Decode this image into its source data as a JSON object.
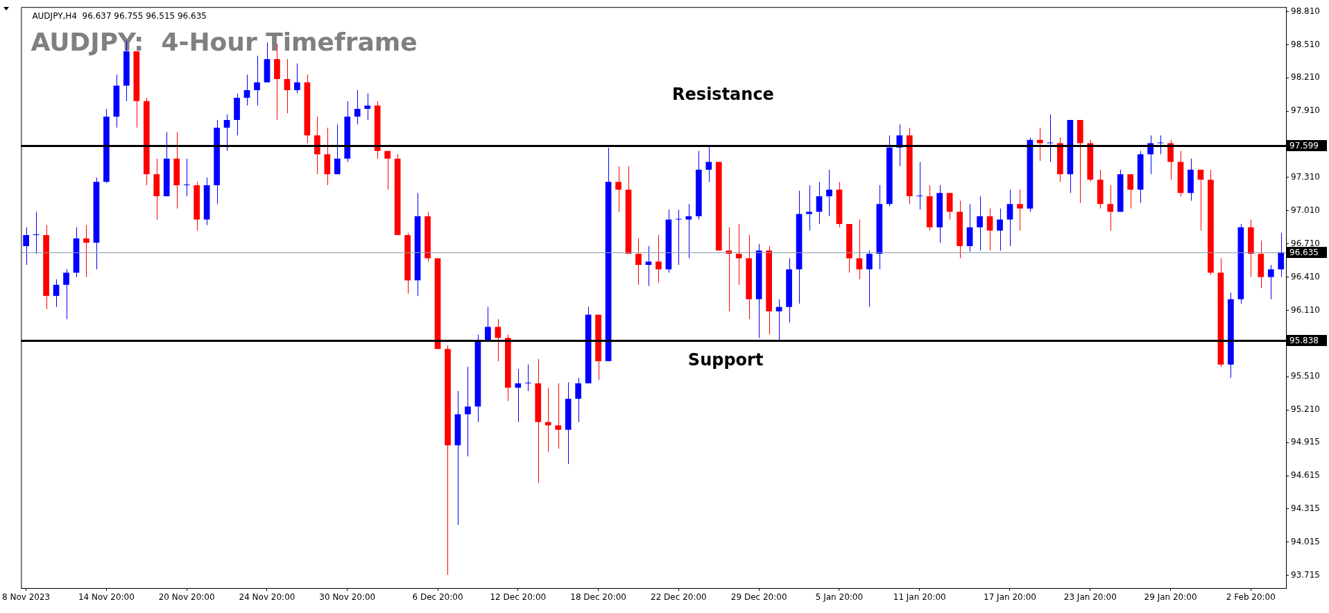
{
  "chart_data": {
    "type": "candlestick",
    "title": "AUDJPY:  4-Hour Timeframe",
    "annotations": [
      "AUDJPY,H4  96.637 96.755 96.515 96.635",
      "Resistance",
      "Support"
    ],
    "categories": [
      "8 Nov 2023",
      null,
      null,
      null,
      null,
      null,
      null,
      null,
      "14 Nov 20:00",
      null,
      null,
      null,
      null,
      null,
      null,
      null,
      "20 Nov 20:00",
      null,
      null,
      null,
      null,
      null,
      null,
      null,
      "24 Nov 20:00",
      null,
      null,
      null,
      null,
      null,
      null,
      null,
      "30 Nov 20:00",
      null,
      null,
      null,
      null,
      null,
      null,
      null,
      null,
      "6 Dec 20:00",
      null,
      null,
      null,
      null,
      null,
      null,
      null,
      "12 Dec 20:00",
      null,
      null,
      null,
      null,
      null,
      null,
      null,
      "18 Dec 20:00",
      null,
      null,
      null,
      null,
      null,
      null,
      null,
      "22 Dec 20:00",
      null,
      null,
      null,
      null,
      null,
      null,
      null,
      "29 Dec 20:00",
      null,
      null,
      null,
      null,
      null,
      null,
      null,
      "5 Jan 20:00",
      null,
      null,
      null,
      null,
      null,
      null,
      null,
      "11 Jan 20:00",
      null,
      null,
      null,
      null,
      null,
      null,
      null,
      null,
      "17 Jan 20:00",
      null,
      null,
      null,
      null,
      null,
      null,
      null,
      "23 Jan 20:00",
      null,
      null,
      null,
      null,
      null,
      null,
      null,
      "29 Jan 20:00",
      null,
      null,
      null,
      null,
      null,
      null,
      null,
      "2 Feb 20:00",
      null,
      null,
      null
    ],
    "ohlc": [
      [
        96.69,
        96.86,
        96.52,
        96.79
      ],
      [
        96.79,
        97.0,
        96.62,
        96.79
      ],
      [
        96.79,
        96.88,
        96.12,
        96.24
      ],
      [
        96.24,
        96.39,
        96.14,
        96.34
      ],
      [
        96.34,
        96.48,
        96.03,
        96.45
      ],
      [
        96.45,
        96.86,
        96.41,
        96.76
      ],
      [
        96.76,
        96.88,
        96.41,
        96.72
      ],
      [
        96.72,
        97.31,
        96.48,
        97.27
      ],
      [
        97.27,
        97.93,
        97.26,
        97.86
      ],
      [
        97.86,
        98.24,
        97.76,
        98.14
      ],
      [
        98.14,
        98.55,
        98.0,
        98.45
      ],
      [
        98.45,
        98.45,
        97.76,
        98.0
      ],
      [
        98.0,
        98.03,
        97.24,
        97.34
      ],
      [
        97.34,
        97.48,
        96.93,
        97.14
      ],
      [
        97.14,
        97.72,
        97.14,
        97.48
      ],
      [
        97.48,
        97.72,
        97.03,
        97.24
      ],
      [
        97.24,
        97.48,
        97.14,
        97.24
      ],
      [
        97.24,
        97.27,
        96.83,
        96.93
      ],
      [
        96.93,
        97.31,
        96.88,
        97.24
      ],
      [
        97.24,
        97.83,
        97.07,
        97.76
      ],
      [
        97.76,
        97.88,
        97.55,
        97.83
      ],
      [
        97.83,
        98.07,
        97.69,
        98.03
      ],
      [
        98.03,
        98.24,
        97.96,
        98.1
      ],
      [
        98.1,
        98.41,
        97.96,
        98.17
      ],
      [
        98.17,
        98.53,
        98.17,
        98.38
      ],
      [
        98.38,
        98.52,
        97.83,
        98.2
      ],
      [
        98.2,
        98.38,
        97.89,
        98.1
      ],
      [
        98.1,
        98.34,
        98.07,
        98.17
      ],
      [
        98.17,
        98.24,
        97.62,
        97.69
      ],
      [
        97.69,
        97.86,
        97.34,
        97.52
      ],
      [
        97.52,
        97.76,
        97.24,
        97.34
      ],
      [
        97.34,
        97.79,
        97.34,
        97.48
      ],
      [
        97.48,
        98.0,
        97.45,
        97.86
      ],
      [
        97.86,
        98.1,
        97.79,
        97.93
      ],
      [
        97.93,
        98.07,
        97.83,
        97.96
      ],
      [
        97.96,
        98.0,
        97.48,
        97.55
      ],
      [
        97.55,
        97.55,
        97.2,
        97.48
      ],
      [
        97.48,
        97.52,
        96.79,
        96.79
      ],
      [
        96.79,
        96.81,
        96.26,
        96.38
      ],
      [
        96.38,
        97.17,
        96.24,
        96.96
      ],
      [
        96.96,
        97.0,
        96.55,
        96.58
      ],
      [
        96.58,
        96.58,
        95.76,
        95.76
      ],
      [
        95.76,
        95.79,
        93.72,
        94.89
      ],
      [
        94.89,
        95.38,
        94.17,
        95.17
      ],
      [
        95.17,
        95.6,
        94.79,
        95.24
      ],
      [
        95.24,
        95.89,
        95.1,
        95.83
      ],
      [
        95.83,
        96.14,
        95.83,
        95.96
      ],
      [
        95.96,
        96.03,
        95.65,
        95.86
      ],
      [
        95.86,
        95.89,
        95.29,
        95.41
      ],
      [
        95.41,
        95.58,
        95.1,
        95.45
      ],
      [
        95.45,
        95.62,
        95.38,
        95.45
      ],
      [
        95.45,
        95.67,
        94.55,
        95.1
      ],
      [
        95.1,
        95.41,
        94.83,
        95.07
      ],
      [
        95.07,
        95.45,
        94.86,
        95.03
      ],
      [
        95.03,
        95.46,
        94.72,
        95.31
      ],
      [
        95.31,
        95.5,
        95.1,
        95.45
      ],
      [
        95.45,
        96.14,
        95.45,
        96.07
      ],
      [
        96.07,
        96.07,
        95.48,
        95.65
      ],
      [
        95.65,
        97.58,
        95.65,
        97.27
      ],
      [
        97.27,
        97.41,
        97.0,
        97.2
      ],
      [
        97.2,
        97.41,
        96.62,
        96.62
      ],
      [
        96.62,
        96.76,
        96.34,
        96.52
      ],
      [
        96.52,
        96.69,
        96.33,
        96.55
      ],
      [
        96.55,
        96.79,
        96.36,
        96.48
      ],
      [
        96.48,
        97.02,
        96.45,
        96.93
      ],
      [
        96.93,
        97.02,
        96.52,
        96.93
      ],
      [
        96.93,
        97.07,
        96.58,
        96.96
      ],
      [
        96.96,
        97.55,
        96.93,
        97.38
      ],
      [
        97.38,
        97.6,
        97.27,
        97.45
      ],
      [
        97.45,
        97.45,
        96.65,
        96.65
      ],
      [
        96.65,
        96.86,
        96.1,
        96.62
      ],
      [
        96.62,
        96.89,
        96.34,
        96.58
      ],
      [
        96.58,
        96.79,
        96.03,
        96.21
      ],
      [
        96.21,
        96.71,
        95.86,
        96.65
      ],
      [
        96.65,
        96.69,
        95.89,
        96.1
      ],
      [
        96.1,
        96.21,
        95.83,
        96.14
      ],
      [
        96.14,
        96.58,
        96.0,
        96.48
      ],
      [
        96.48,
        97.19,
        96.17,
        96.98
      ],
      [
        96.98,
        97.24,
        96.83,
        97.0
      ],
      [
        97.0,
        97.27,
        96.89,
        97.14
      ],
      [
        97.14,
        97.38,
        96.96,
        97.2
      ],
      [
        97.2,
        97.27,
        96.86,
        96.89
      ],
      [
        96.89,
        96.89,
        96.45,
        96.58
      ],
      [
        96.58,
        96.93,
        96.39,
        96.48
      ],
      [
        96.48,
        96.65,
        96.14,
        96.62
      ],
      [
        96.62,
        97.24,
        96.48,
        97.07
      ],
      [
        97.07,
        97.69,
        97.05,
        97.58
      ],
      [
        97.58,
        97.79,
        97.41,
        97.69
      ],
      [
        97.69,
        97.76,
        97.07,
        97.14
      ],
      [
        97.14,
        97.45,
        97.02,
        97.14
      ],
      [
        97.14,
        97.24,
        96.83,
        96.86
      ],
      [
        96.86,
        97.24,
        96.72,
        97.17
      ],
      [
        97.17,
        97.17,
        96.93,
        97.0
      ],
      [
        97.0,
        97.1,
        96.58,
        96.69
      ],
      [
        96.69,
        97.07,
        96.64,
        96.86
      ],
      [
        96.86,
        97.14,
        96.65,
        96.96
      ],
      [
        96.96,
        97.03,
        96.65,
        96.83
      ],
      [
        96.83,
        97.03,
        96.65,
        96.93
      ],
      [
        96.93,
        97.2,
        96.69,
        97.07
      ],
      [
        97.07,
        97.2,
        96.83,
        97.03
      ],
      [
        97.03,
        97.67,
        97.0,
        97.65
      ],
      [
        97.65,
        97.76,
        97.46,
        97.62
      ],
      [
        97.62,
        97.88,
        97.45,
        97.62
      ],
      [
        97.62,
        97.67,
        97.27,
        97.34
      ],
      [
        97.34,
        97.83,
        97.17,
        97.83
      ],
      [
        97.83,
        97.83,
        97.08,
        97.62
      ],
      [
        97.62,
        97.65,
        97.27,
        97.29
      ],
      [
        97.29,
        97.38,
        97.03,
        97.07
      ],
      [
        97.07,
        97.24,
        96.83,
        97.0
      ],
      [
        97.0,
        97.38,
        97.0,
        97.34
      ],
      [
        97.34,
        97.34,
        97.03,
        97.2
      ],
      [
        97.2,
        97.55,
        97.08,
        97.52
      ],
      [
        97.52,
        97.69,
        97.34,
        97.62
      ],
      [
        97.62,
        97.69,
        97.52,
        97.62
      ],
      [
        97.62,
        97.65,
        97.29,
        97.45
      ],
      [
        97.45,
        97.55,
        97.14,
        97.17
      ],
      [
        97.17,
        97.48,
        97.1,
        97.38
      ],
      [
        97.38,
        97.38,
        96.83,
        97.29
      ],
      [
        97.29,
        97.38,
        96.43,
        96.45
      ],
      [
        96.45,
        96.58,
        95.6,
        95.62
      ],
      [
        95.62,
        96.27,
        95.5,
        96.21
      ],
      [
        96.21,
        96.89,
        96.17,
        96.86
      ],
      [
        96.86,
        96.93,
        96.41,
        96.62
      ],
      [
        96.62,
        96.74,
        96.31,
        96.41
      ],
      [
        96.41,
        96.52,
        96.21,
        96.48
      ],
      [
        96.48,
        96.81,
        96.41,
        96.635
      ]
    ],
    "colors": [
      "#0000ff",
      "#0000ff",
      "#ff0000",
      "#0000ff",
      "#0000ff",
      "#0000ff",
      "#ff0000",
      "#0000ff",
      "#0000ff",
      "#0000ff",
      "#0000ff",
      "#ff0000",
      "#ff0000",
      "#ff0000",
      "#0000ff",
      "#ff0000",
      "#0000ff",
      "#ff0000",
      "#0000ff",
      "#0000ff",
      "#0000ff",
      "#0000ff",
      "#0000ff",
      "#0000ff",
      "#0000ff",
      "#ff0000",
      "#ff0000",
      "#0000ff",
      "#ff0000",
      "#ff0000",
      "#ff0000",
      "#0000ff",
      "#0000ff",
      "#0000ff",
      "#0000ff",
      "#ff0000",
      "#ff0000",
      "#ff0000",
      "#ff0000",
      "#0000ff",
      "#ff0000",
      "#ff0000",
      "#ff0000",
      "#0000ff",
      "#0000ff",
      "#0000ff",
      "#0000ff",
      "#ff0000",
      "#ff0000",
      "#0000ff",
      "#0000ff",
      "#ff0000",
      "#ff0000",
      "#ff0000",
      "#0000ff",
      "#0000ff",
      "#0000ff",
      "#ff0000",
      "#0000ff",
      "#ff0000",
      "#ff0000",
      "#ff0000",
      "#0000ff",
      "#ff0000",
      "#0000ff",
      "#0000ff",
      "#0000ff",
      "#0000ff",
      "#0000ff",
      "#ff0000",
      "#ff0000",
      "#ff0000",
      "#ff0000",
      "#0000ff",
      "#ff0000",
      "#0000ff",
      "#0000ff",
      "#0000ff",
      "#0000ff",
      "#0000ff",
      "#0000ff",
      "#ff0000",
      "#ff0000",
      "#ff0000",
      "#0000ff",
      "#0000ff",
      "#0000ff",
      "#0000ff",
      "#ff0000",
      "#0000ff",
      "#ff0000",
      "#0000ff",
      "#ff0000",
      "#ff0000",
      "#0000ff",
      "#0000ff",
      "#ff0000",
      "#0000ff",
      "#0000ff",
      "#ff0000",
      "#0000ff",
      "#ff0000",
      "#0000ff",
      "#ff0000",
      "#0000ff",
      "#ff0000",
      "#ff0000",
      "#ff0000",
      "#ff0000",
      "#0000ff",
      "#ff0000",
      "#0000ff",
      "#0000ff",
      "#0000ff",
      "#ff0000",
      "#ff0000",
      "#0000ff",
      "#ff0000",
      "#ff0000",
      "#ff0000",
      "#0000ff",
      "#0000ff",
      "#ff0000",
      "#ff0000",
      "#0000ff",
      "#0000ff"
    ],
    "ylim": [
      93.6,
      98.85
    ],
    "yticks": [
      {
        "value": 98.81,
        "label": "98.810"
      },
      {
        "value": 98.51,
        "label": "98.510"
      },
      {
        "value": 98.21,
        "label": "98.210"
      },
      {
        "value": 97.91,
        "label": "97.910"
      },
      {
        "value": 97.31,
        "label": "97.310"
      },
      {
        "value": 97.01,
        "label": "97.010"
      },
      {
        "value": 96.71,
        "label": "96.710"
      },
      {
        "value": 96.41,
        "label": "96.410"
      },
      {
        "value": 96.11,
        "label": "96.110"
      },
      {
        "value": 95.51,
        "label": "95.510"
      },
      {
        "value": 95.21,
        "label": "95.210"
      },
      {
        "value": 94.915,
        "label": "94.915"
      },
      {
        "value": 94.615,
        "label": "94.615"
      },
      {
        "value": 94.315,
        "label": "94.315"
      },
      {
        "value": 94.015,
        "label": "94.015"
      },
      {
        "value": 93.715,
        "label": "93.715"
      }
    ],
    "ref_lines": [
      {
        "axis": "y",
        "value": 97.599,
        "label": "97.599",
        "color": "#000000"
      },
      {
        "axis": "y",
        "value": 96.635,
        "label": "96.635",
        "color": "#8c9aa8"
      },
      {
        "axis": "y",
        "value": 95.838,
        "label": "95.838",
        "color": "#000000"
      }
    ],
    "grid": false,
    "legend": false
  }
}
